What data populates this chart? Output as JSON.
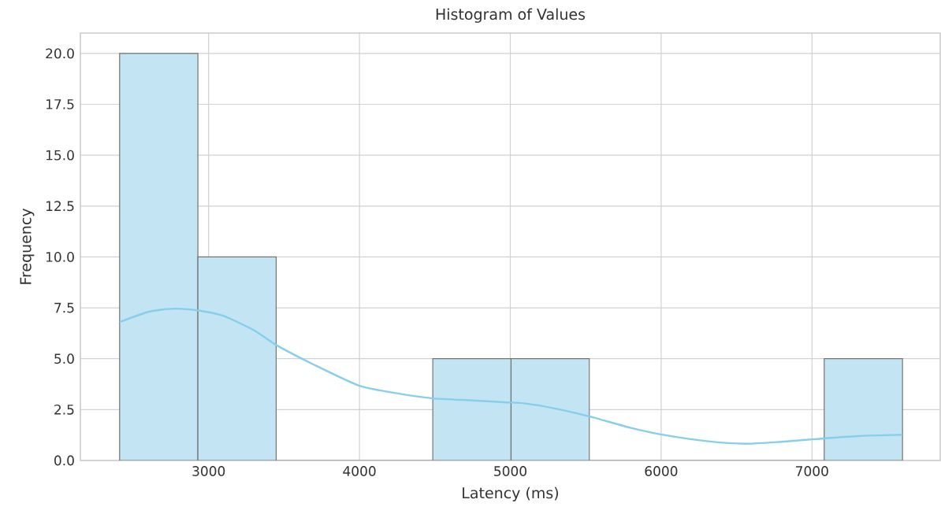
{
  "chart_data": {
    "type": "histogram",
    "title": "Histogram of Values",
    "xlabel": "Latency (ms)",
    "ylabel": "Frequency",
    "bins": [
      2410,
      2929,
      3448,
      3967,
      4486,
      5005,
      5524,
      6043,
      6562,
      7081,
      7600
    ],
    "values": [
      20,
      10,
      0,
      0,
      5,
      5,
      0,
      0,
      0,
      5
    ],
    "color": "#c2e4f3",
    "series": [
      {
        "type": "line",
        "color": "#87ceeb",
        "x": [
          2410,
          2600,
          2770,
          2950,
          3100,
          3300,
          3444,
          3700,
          4000,
          4250,
          4488,
          4750,
          4958,
          5100,
          5300,
          5527,
          5800,
          6013,
          6300,
          6561,
          6800,
          7021,
          7300,
          7600
        ],
        "values": [
          6.8,
          7.3,
          7.46,
          7.35,
          7.1,
          6.4,
          5.69,
          4.7,
          3.67,
          3.3,
          3.05,
          2.95,
          2.86,
          2.8,
          2.55,
          2.16,
          1.6,
          1.26,
          0.95,
          0.82,
          0.92,
          1.05,
          1.2,
          1.26
        ]
      }
    ],
    "xlim": [
      2150,
      7850
    ],
    "ylim": [
      0,
      21
    ],
    "xticks": [
      3000,
      4000,
      5000,
      6000,
      7000
    ],
    "yticks": [
      {
        "value": 0,
        "label": "0.0"
      },
      {
        "value": 2.5,
        "label": "2.5"
      },
      {
        "value": 5,
        "label": "5.0"
      },
      {
        "value": 7.5,
        "label": "7.5"
      },
      {
        "value": 10,
        "label": "10.0"
      },
      {
        "value": 12.5,
        "label": "12.5"
      },
      {
        "value": 15,
        "label": "15.0"
      },
      {
        "value": 17.5,
        "label": "17.5"
      },
      {
        "value": 20,
        "label": "20.0"
      }
    ],
    "grid": true
  }
}
